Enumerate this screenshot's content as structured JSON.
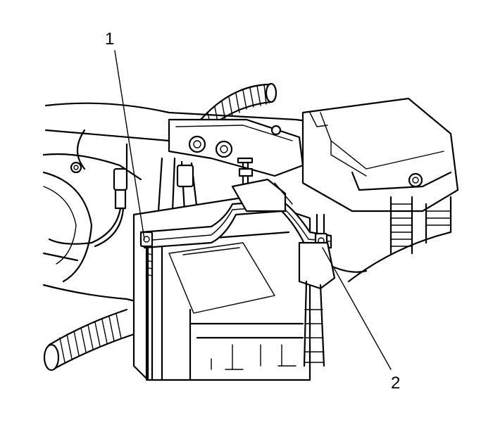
{
  "callouts": [
    {
      "number": "1"
    },
    {
      "number": "2"
    }
  ],
  "colors": {
    "line": "#000000",
    "background": "#ffffff"
  }
}
